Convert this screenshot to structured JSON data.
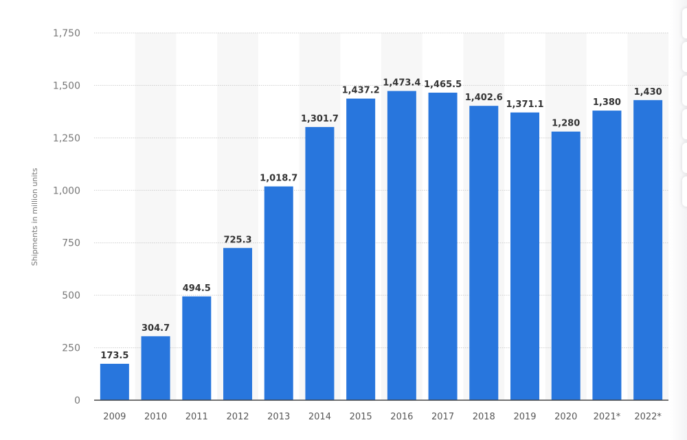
{
  "chart_data": {
    "type": "bar",
    "title": "",
    "xlabel": "",
    "ylabel": "Shipments in million units",
    "ylim": [
      0,
      1750
    ],
    "yticks": [
      0,
      250,
      500,
      750,
      1000,
      1250,
      1500,
      1750
    ],
    "ytick_labels": [
      "0",
      "250",
      "500",
      "750",
      "1,000",
      "1,250",
      "1,500",
      "1,750"
    ],
    "categories": [
      "2009",
      "2010",
      "2011",
      "2012",
      "2013",
      "2014",
      "2015",
      "2016",
      "2017",
      "2018",
      "2019",
      "2020",
      "2021*",
      "2022*"
    ],
    "values": [
      173.5,
      304.7,
      494.5,
      725.3,
      1018.7,
      1301.7,
      1437.2,
      1473.4,
      1465.5,
      1402.6,
      1371.1,
      1280,
      1380,
      1430
    ],
    "value_labels": [
      "173.5",
      "304.7",
      "494.5",
      "725.3",
      "1,018.7",
      "1,301.7",
      "1,437.2",
      "1,473.4",
      "1,465.5",
      "1,402.6",
      "1,371.1",
      "1,280",
      "1,380",
      "1,430"
    ],
    "grid": true,
    "bar_color": "#2876dd"
  }
}
